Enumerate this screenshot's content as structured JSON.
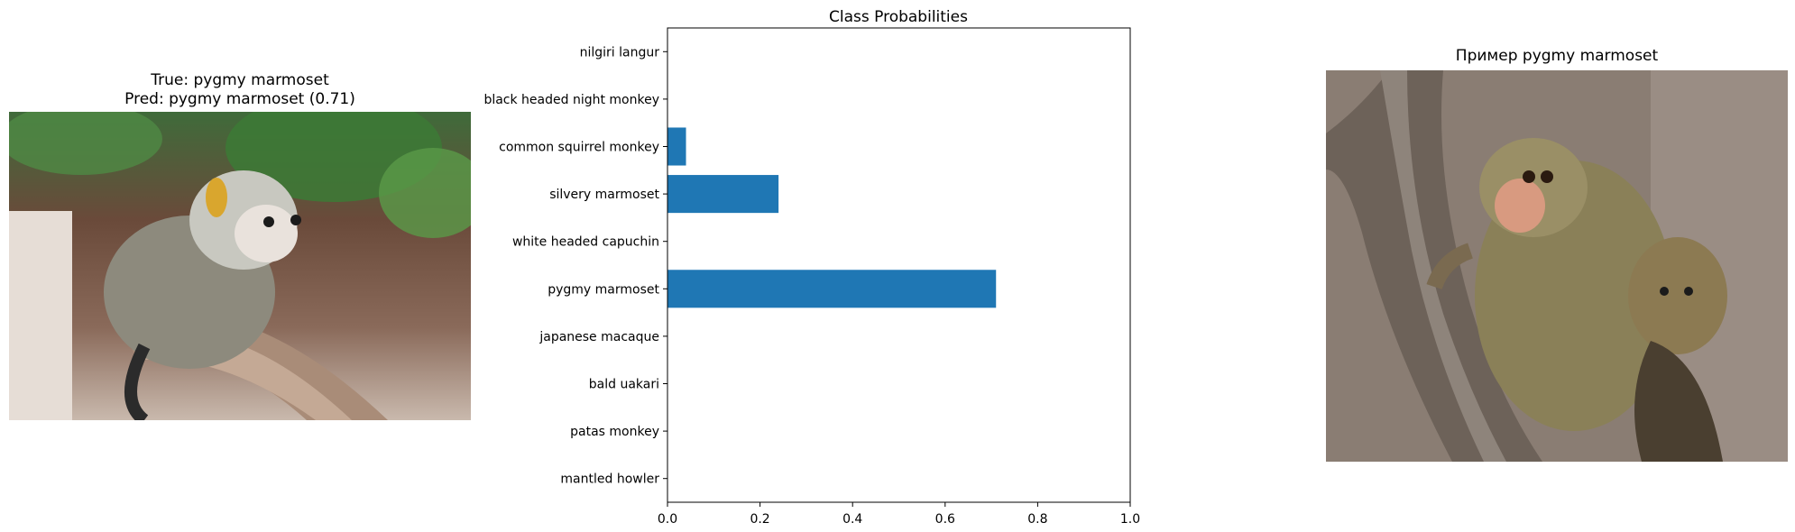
{
  "left_panel": {
    "true_label": "True: pygmy marmoset",
    "pred_label": "Pred: pygmy marmoset (0.71)"
  },
  "right_panel": {
    "title": "Пример pygmy marmoset"
  },
  "chart_data": {
    "type": "bar",
    "orientation": "horizontal",
    "title": "Class Probabilities",
    "xlabel": "",
    "ylabel": "",
    "xlim": [
      0,
      1.0
    ],
    "xticks": [
      0.0,
      0.2,
      0.4,
      0.6,
      0.8,
      1.0
    ],
    "xtick_labels": [
      "0.0",
      "0.2",
      "0.4",
      "0.6",
      "0.8",
      "1.0"
    ],
    "categories": [
      "nilgiri langur",
      "black headed night monkey",
      "common squirrel monkey",
      "silvery marmoset",
      "white headed capuchin",
      "pygmy marmoset",
      "japanese macaque",
      "bald uakari",
      "patas monkey",
      "mantled howler"
    ],
    "values": [
      0.0,
      0.0,
      0.04,
      0.24,
      0.0,
      0.71,
      0.0,
      0.0,
      0.0,
      0.0
    ],
    "bar_color": "#1f77b4",
    "grid": false
  }
}
